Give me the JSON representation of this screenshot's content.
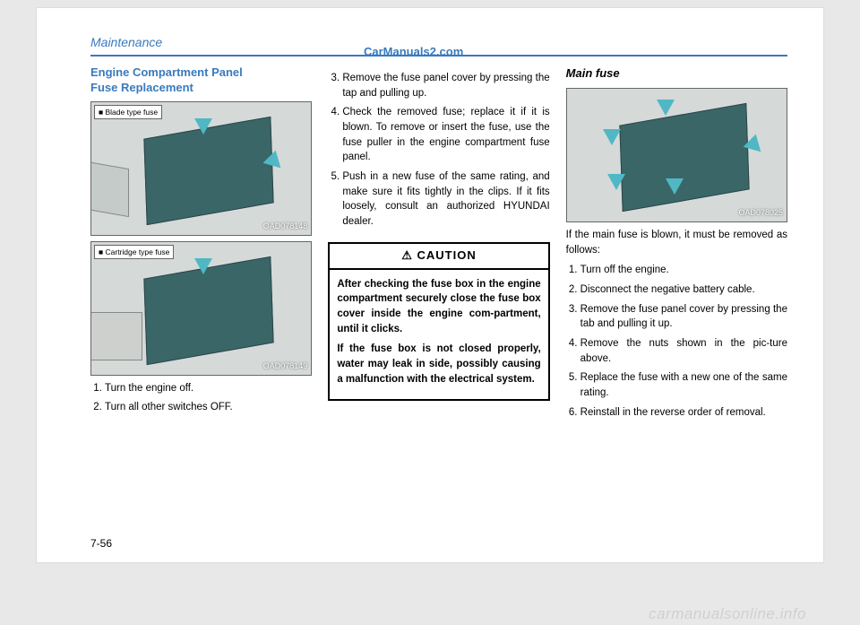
{
  "header": {
    "title": "Maintenance"
  },
  "watermark_top": "CarManuals2.com",
  "col1": {
    "section_title_l1": "Engine Compartment Panel",
    "section_title_l2": "Fuse Replacement",
    "fig1_label": "■ Blade type fuse",
    "fig1_code": "OAD078148",
    "fig2_label": "■ Cartridge type fuse",
    "fig2_code": "OAD078149",
    "step1": "Turn the engine off.",
    "step2": "Turn all other switches OFF."
  },
  "col2": {
    "step3": "Remove the fuse panel cover by pressing the tap and pulling up.",
    "step4": "Check the removed fuse; replace it if it is blown. To remove or insert the fuse, use the fuse puller in the engine compartment fuse panel.",
    "step5": "Push in a new fuse of the same rating, and make sure it fits tightly in the clips. If it fits loosely, consult an authorized HYUNDAI dealer.",
    "caution_header": "CAUTION",
    "caution_p1": "After checking the fuse box in the engine compartment securely close the fuse box cover inside the engine com-partment, until it clicks.",
    "caution_p2": "If the fuse box is not closed properly, water may leak in side, possibly causing a malfunction with the electrical system."
  },
  "col3": {
    "subheading": "Main fuse",
    "fig3_code": "OAD078025",
    "intro": "If the main fuse is blown, it must be removed as follows:",
    "s1": "Turn off the engine.",
    "s2": "Disconnect the negative battery cable.",
    "s3": "Remove the fuse panel cover by pressing the tab and pulling it up.",
    "s4": "Remove the nuts shown in the pic-ture above.",
    "s5": "Replace the fuse with a new one of the same rating.",
    "s6": "Reinstall in the reverse order of removal."
  },
  "page_number": "7-56",
  "watermark_bottom": "carmanualsonline.info"
}
